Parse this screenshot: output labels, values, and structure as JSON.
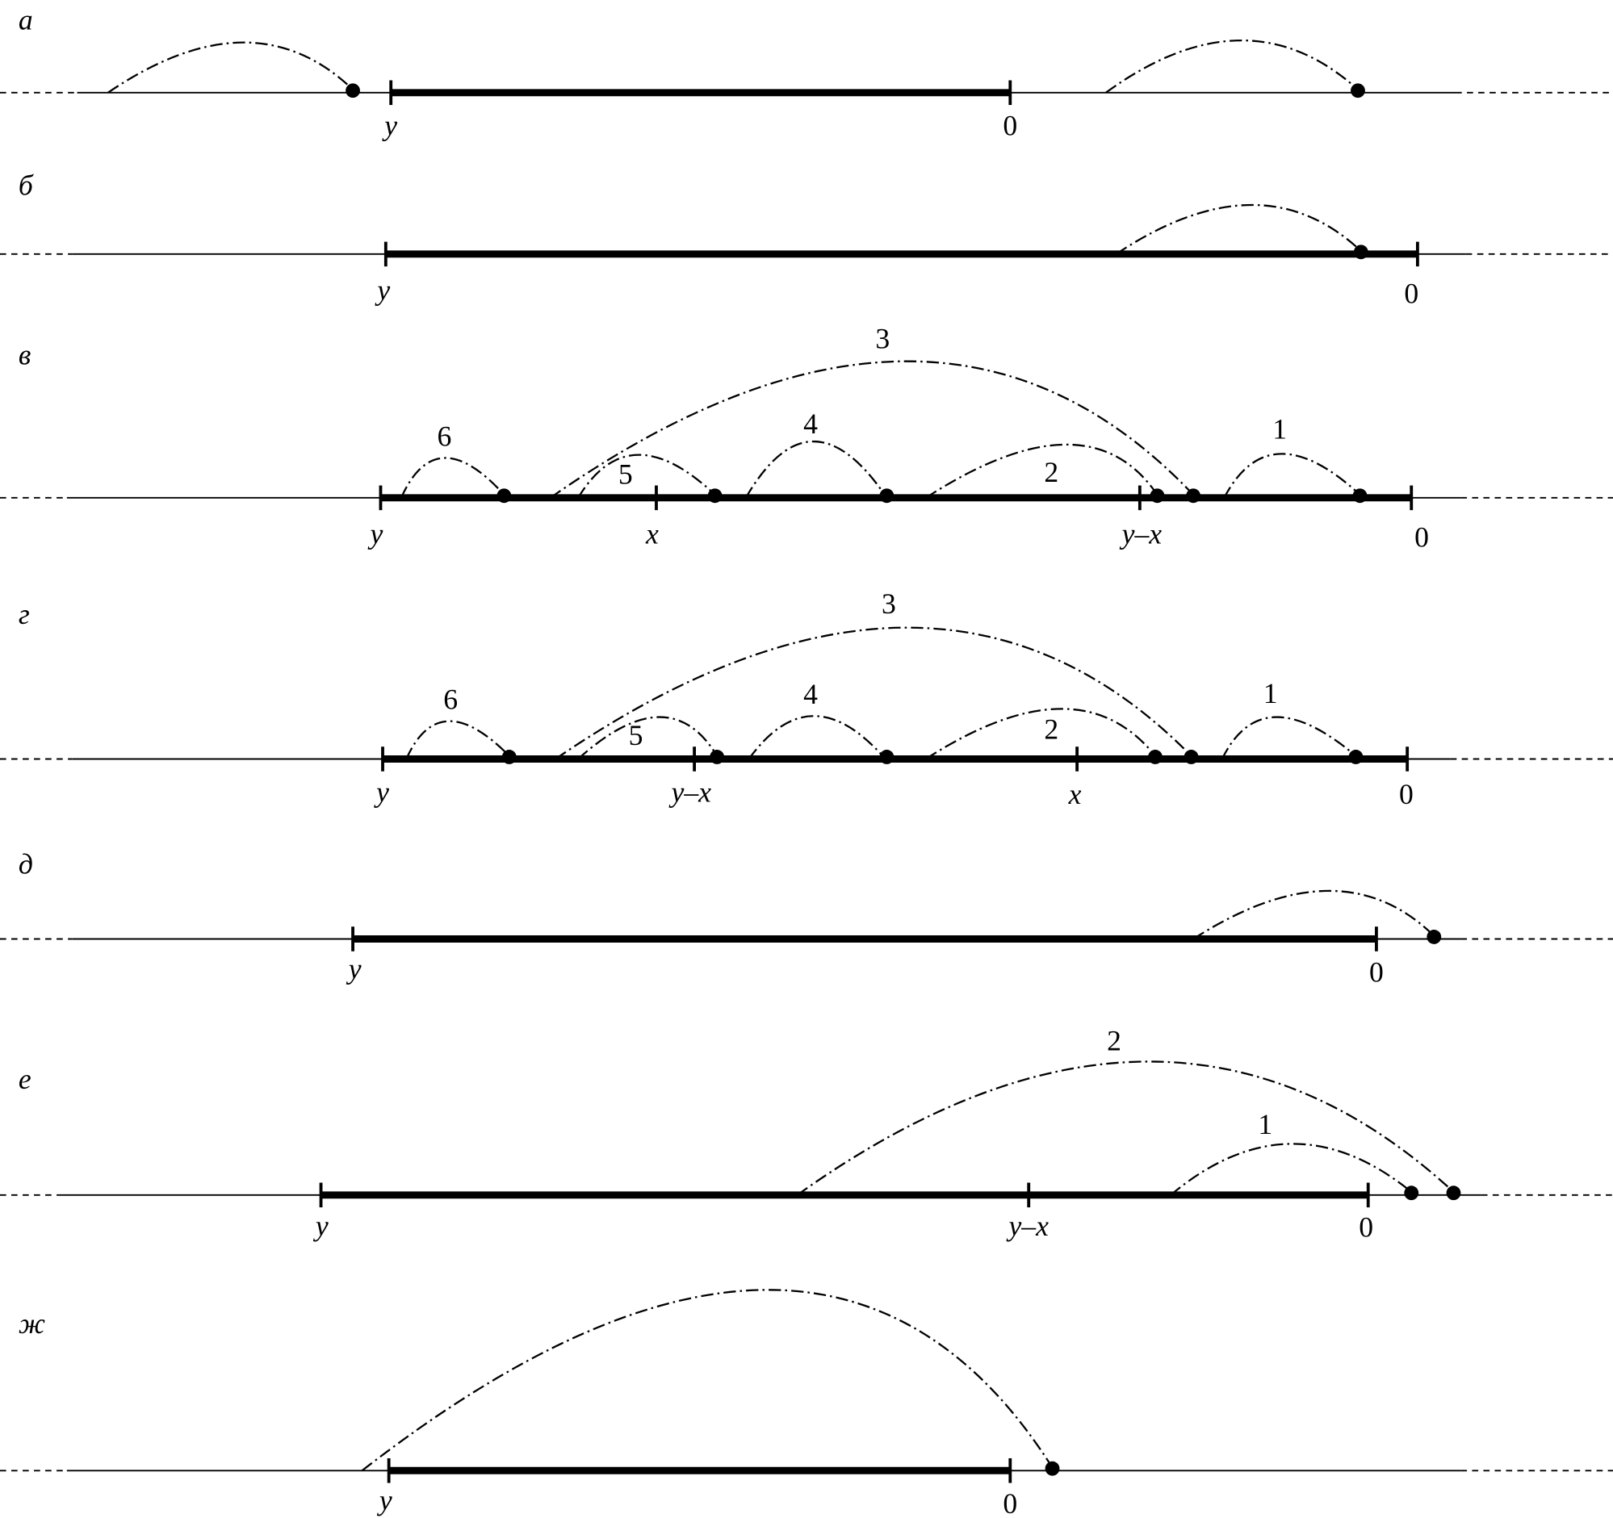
{
  "panels": [
    {
      "label": "а",
      "ticks": [
        "y",
        "0"
      ]
    },
    {
      "label": "б",
      "ticks": [
        "y",
        "0"
      ]
    },
    {
      "label": "в",
      "ticks": [
        "y",
        "x",
        "y–x",
        "0"
      ],
      "arc_labels": [
        "6",
        "5",
        "3",
        "4",
        "2",
        "1"
      ]
    },
    {
      "label": "г",
      "ticks": [
        "y",
        "y–x",
        "x",
        "0"
      ],
      "arc_labels": [
        "6",
        "5",
        "3",
        "4",
        "2",
        "1"
      ]
    },
    {
      "label": "д",
      "ticks": [
        "y",
        "0"
      ]
    },
    {
      "label": "е",
      "ticks": [
        "y",
        "y–x",
        "0"
      ],
      "arc_labels": [
        "1",
        "2"
      ]
    },
    {
      "label": "ж",
      "ticks": [
        "y",
        "0"
      ]
    }
  ]
}
